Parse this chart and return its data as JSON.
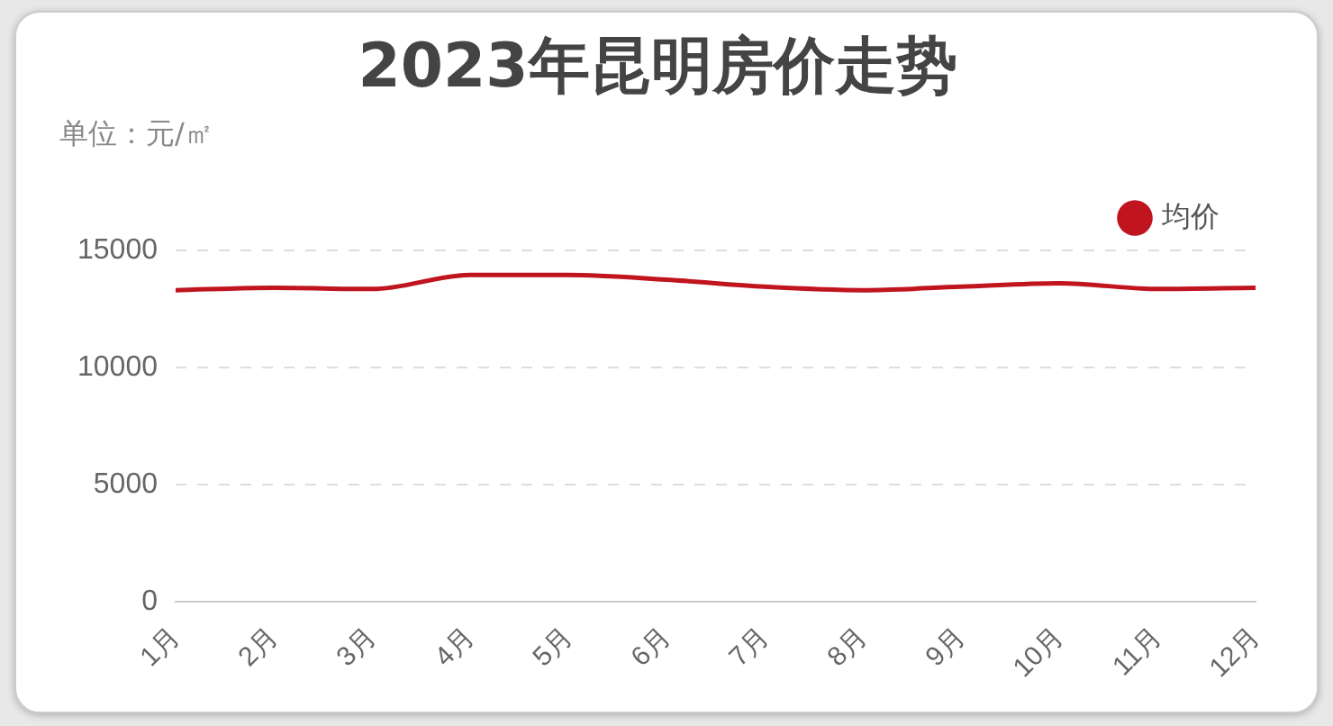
{
  "chart_data": {
    "type": "line",
    "title": "2023年昆明房价走势",
    "subtitle": "单位：元/㎡",
    "categories": [
      "1月",
      "2月",
      "3月",
      "4月",
      "5月",
      "6月",
      "7月",
      "8月",
      "9月",
      "10月",
      "11月",
      "12月"
    ],
    "series": [
      {
        "name": "均价",
        "color": "#c0141e",
        "values": [
          13300,
          13400,
          13350,
          13950,
          13950,
          13750,
          13450,
          13300,
          13450,
          13600,
          13350,
          13400
        ]
      }
    ],
    "ylim": [
      0,
      15000
    ],
    "yticks": [
      0,
      5000,
      10000,
      15000
    ],
    "grid": "y",
    "legend": "top right",
    "marker": "none",
    "line_style": "solid"
  }
}
